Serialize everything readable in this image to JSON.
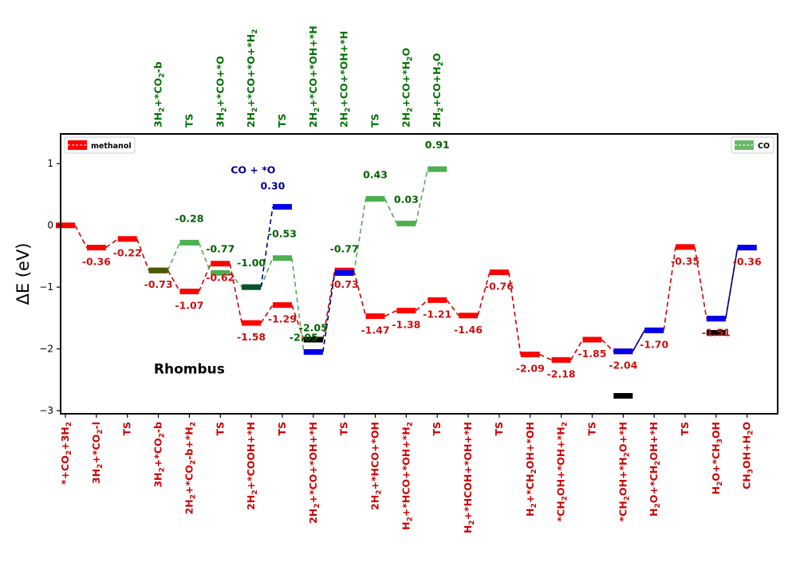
{
  "chart_data": {
    "type": "line",
    "ylabel": "ΔE (eV)",
    "ylim": [
      -3.05,
      1.48
    ],
    "yticks": [
      -3,
      -2,
      -1,
      0,
      1
    ],
    "annotations": [
      {
        "text": "Rhombus",
        "x": 4,
        "y": -2.4,
        "color": "#000000"
      },
      {
        "text": "CO + *O",
        "x": 5.8,
        "y": 0.84,
        "color": "#00008b"
      }
    ],
    "legend": [
      {
        "name": "methanol",
        "color": "#ff0000",
        "placement": "top-left"
      },
      {
        "name": "CO",
        "color": "#66bb66",
        "placement": "top-right"
      }
    ],
    "bottom_categories": [
      {
        "text": "*+CO",
        "sub": "2",
        "rest": "+3H",
        "sub2": "2"
      },
      {
        "text": "3H",
        "sub": "2",
        "rest": "+*CO",
        "sub2": "2",
        "rest2": "-l"
      },
      {
        "text": "TS"
      },
      {
        "text": "3H",
        "sub": "2",
        "rest": "+*CO",
        "sub2": "2",
        "rest2": "-b"
      },
      {
        "text": "2H",
        "sub": "2",
        "rest": "+*CO",
        "sub2": "2",
        "rest2": "-b+*H",
        "sub3": "2"
      },
      {
        "text": "TS"
      },
      {
        "text": "2H",
        "sub": "2",
        "rest": "+*COOH+*H"
      },
      {
        "text": "TS"
      },
      {
        "text": "2H",
        "sub": "2",
        "rest": "+*CO+*OH+*H"
      },
      {
        "text": "TS"
      },
      {
        "text": "2H",
        "sub": "2",
        "rest": "+*HCO+*OH"
      },
      {
        "text": "H",
        "sub": "2",
        "rest": "+*HCO+*OH+*H",
        "sub2": "2"
      },
      {
        "text": "TS"
      },
      {
        "text": "H",
        "sub": "2",
        "rest": "+*HCOH+*OH+*H"
      },
      {
        "text": "TS"
      },
      {
        "text": "H",
        "sub": "2",
        "rest": "+*CH",
        "sub2": "2",
        "rest2": "OH+*OH"
      },
      {
        "text": "*CH",
        "sub": "2",
        "rest": "OH+*OH+*H",
        "sub2": "2"
      },
      {
        "text": "TS"
      },
      {
        "text": "*CH",
        "sub": "2",
        "rest": "OH+*H",
        "sub2": "2",
        "rest2": "O+*H"
      },
      {
        "text": "H",
        "sub": "2",
        "rest": "O+*CH",
        "sub2": "2",
        "rest2": "OH+*H"
      },
      {
        "text": "TS"
      },
      {
        "text": "H",
        "sub": "2",
        "rest": "O+*CH",
        "sub2": "3",
        "rest2": "OH"
      },
      {
        "text": "CH",
        "sub": "3",
        "rest": "OH+H",
        "sub2": "2",
        "rest2": "O"
      }
    ],
    "top_categories": [
      {
        "x": 3,
        "text": "3H",
        "sub": "2",
        "rest": "+*CO",
        "sub2": "2",
        "rest2": "-b"
      },
      {
        "x": 4,
        "text": "TS"
      },
      {
        "x": 5,
        "text": "3H",
        "sub": "2",
        "rest": "+*CO+*O"
      },
      {
        "x": 6,
        "text": "2H",
        "sub": "2",
        "rest": "+*CO+*O+*H",
        "sub2": "2"
      },
      {
        "x": 7,
        "text": "TS"
      },
      {
        "x": 8,
        "text": "2H",
        "sub": "2",
        "rest": "+*CO+*OH+*H"
      },
      {
        "x": 9,
        "text": "2H",
        "sub": "2",
        "rest": "+CO+*OH+*H"
      },
      {
        "x": 10,
        "text": "TS"
      },
      {
        "x": 11,
        "text": "2H",
        "sub": "2",
        "rest": "+CO+*H",
        "sub2": "2",
        "rest2": "O"
      },
      {
        "x": 12,
        "text": "2H",
        "sub": "2",
        "rest": "+CO+H",
        "sub2": "2",
        "rest2": "O"
      }
    ],
    "series": [
      {
        "name": "methanol",
        "color": "#cc0000",
        "bar_color": "#ff0000",
        "points": [
          {
            "x": 0,
            "y": 0.0,
            "label": ""
          },
          {
            "x": 1,
            "y": -0.36,
            "label": "-0.36"
          },
          {
            "x": 2,
            "y": -0.22,
            "label": "-0.22"
          },
          {
            "x": 3,
            "y": -0.73,
            "label": "-0.73"
          },
          {
            "x": 4,
            "y": -1.07,
            "label": "-1.07"
          },
          {
            "x": 5,
            "y": -0.62,
            "label": "-0.62"
          },
          {
            "x": 6,
            "y": -1.58,
            "label": "-1.58"
          },
          {
            "x": 7,
            "y": -1.29,
            "label": "-1.29"
          },
          {
            "x": 8,
            "y": -1.85,
            "label": ""
          },
          {
            "x": 9,
            "y": -0.73,
            "label": "-0.73"
          },
          {
            "x": 10,
            "y": -1.47,
            "label": "-1.47"
          },
          {
            "x": 11,
            "y": -1.38,
            "label": "-1.38"
          },
          {
            "x": 12,
            "y": -1.21,
            "label": "-1.21"
          },
          {
            "x": 13,
            "y": -1.46,
            "label": "-1.46"
          },
          {
            "x": 14,
            "y": -0.76,
            "label": "-0.76"
          },
          {
            "x": 15,
            "y": -2.09,
            "label": "-2.09"
          },
          {
            "x": 16,
            "y": -2.18,
            "label": "-2.18"
          },
          {
            "x": 17,
            "y": -1.85,
            "label": "-1.85"
          },
          {
            "x": 18,
            "y": -2.04,
            "label": "-2.04"
          },
          {
            "x": 19,
            "y": -1.7,
            "label": "-1.70"
          },
          {
            "x": 20,
            "y": -0.35,
            "label": "-0.35"
          },
          {
            "x": 21,
            "y": -1.51,
            "label": "-1.51"
          },
          {
            "x": 22,
            "y": -0.36,
            "label": "-0.36"
          }
        ]
      },
      {
        "name": "CO",
        "color": "#55aa55",
        "bar_color": "#4caf50",
        "label_color": "#006400",
        "points": [
          {
            "x": 3,
            "y": -0.73,
            "label": ""
          },
          {
            "x": 4,
            "y": -0.28,
            "label": "-0.28"
          },
          {
            "x": 5,
            "y": -0.77,
            "label": "-0.77"
          },
          {
            "x": 6,
            "y": -1.0,
            "label": "-1.00"
          },
          {
            "x": 7,
            "y": -0.53,
            "label": "-0.53"
          },
          {
            "x": 8,
            "y": -2.05,
            "label": "-2.05"
          },
          {
            "x": 9,
            "y": -0.77,
            "label": "-0.77"
          },
          {
            "x": 10,
            "y": 0.43,
            "label": "0.43"
          },
          {
            "x": 11,
            "y": 0.03,
            "label": "0.03"
          },
          {
            "x": 12,
            "y": 0.91,
            "label": "0.91"
          }
        ]
      }
    ],
    "blue_segments": [
      {
        "x1": 6,
        "y1": -1.0,
        "x2": 7,
        "y2": 0.3,
        "style": "dashed",
        "label": "0.30",
        "lx": 7,
        "ly": 0.3
      },
      {
        "x1": 8,
        "y1": -2.05,
        "x2": 9,
        "y2": -0.77,
        "style": "dashed",
        "label": "-2.05",
        "lx": 8,
        "ly": -2.05
      },
      {
        "x1": 18,
        "y1": -2.04,
        "x2": 19,
        "y2": -1.7,
        "style": "solid",
        "label": "",
        "lx": 18,
        "ly": -2.04
      },
      {
        "x1": 21,
        "y1": -1.51,
        "x2": 22,
        "y2": -0.36,
        "style": "solid",
        "label": "",
        "lx": 21,
        "ly": -1.51
      }
    ],
    "extra_bars": [
      {
        "x": 3,
        "y": -0.73,
        "color": "#4a5a00"
      },
      {
        "x": 6,
        "y": -1.0,
        "color": "#0b5030"
      },
      {
        "x": 8,
        "y": -1.85,
        "color": "#000000"
      },
      {
        "x": 9,
        "y": -0.77,
        "color": "#0000ee"
      },
      {
        "x": 18,
        "y": -2.76,
        "color": "#000000"
      },
      {
        "x": 21,
        "y": -1.74,
        "color": "#000000"
      }
    ]
  }
}
